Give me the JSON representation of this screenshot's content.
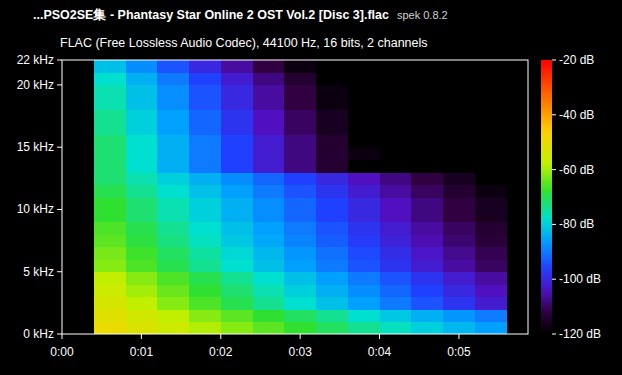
{
  "chart_data": {
    "type": "heatmap",
    "title": "...PSO2SE集 - Phantasy Star Online 2 OST Vol.2 [Disc 3].flac",
    "annotations": [
      "spek 0.8.2"
    ],
    "subtitle": "FLAC (Free Lossless Audio Codec), 44100 Hz, 16 bits, 2 channels",
    "x_bins": [
      0.4,
      0.8,
      1.2,
      1.6,
      2.0,
      2.4,
      2.8,
      3.2,
      3.6,
      4.0,
      4.4,
      4.8,
      5.2,
      5.6
    ],
    "y_bins": [
      0,
      1,
      2,
      3,
      4,
      5,
      6,
      7,
      8,
      9,
      10,
      11,
      12,
      13,
      14,
      15,
      16,
      17,
      18,
      19,
      20,
      21,
      22
    ],
    "cells": [
      [
        -50,
        -53,
        -56,
        -59,
        -62,
        -65,
        -68,
        -71,
        -74,
        -77,
        -80,
        -83,
        -86
      ],
      [
        -52,
        -55,
        -58,
        -62,
        -65,
        -68,
        -71,
        -74,
        -78,
        -81,
        -84,
        -87,
        -90
      ],
      [
        -54,
        -58,
        -62,
        -66,
        -70,
        -74,
        -78,
        -82,
        -86,
        -90,
        -94,
        -98,
        -102
      ],
      [
        -56,
        -60,
        -64,
        -68,
        -72,
        -76,
        -80,
        -84,
        -88,
        -92,
        -96,
        -100,
        -104
      ],
      [
        -58,
        -62,
        -66,
        -70,
        -74,
        -78,
        -82,
        -86,
        -90,
        -94,
        -98,
        -102,
        -106
      ],
      [
        -62,
        -66,
        -70,
        -74,
        -78,
        -82,
        -86,
        -90,
        -94,
        -98,
        -102,
        -106,
        -110
      ],
      [
        -63,
        -67,
        -71,
        -75,
        -79,
        -83,
        -87,
        -91,
        -95,
        -99,
        -103,
        -107,
        -111
      ],
      [
        -65,
        -69,
        -73,
        -77,
        -81,
        -85,
        -89,
        -93,
        -97,
        -101,
        -105,
        -109,
        -113
      ],
      [
        -66,
        -70,
        -74,
        -78,
        -82,
        -86,
        -90,
        -94,
        -98,
        -102,
        -106,
        -110,
        -114
      ],
      [
        -68,
        -72,
        -76,
        -80,
        -84,
        -88,
        -92,
        -96,
        -100,
        -104,
        -108,
        -112,
        -116
      ],
      [
        -68,
        -72,
        -76,
        -80,
        -84,
        -88,
        -92,
        -96,
        -100,
        -104,
        -108,
        -112,
        -116
      ],
      [
        -70,
        -74,
        -78,
        -82,
        -86,
        -90,
        -94,
        -98,
        -102,
        -106,
        -110,
        -114,
        -118
      ],
      [
        -72,
        -76,
        -80,
        -84,
        -88,
        -92,
        -96,
        -100,
        -104,
        -108,
        -112,
        -116,
        -120
      ],
      [
        -72,
        -78,
        -84,
        -90,
        -96,
        -102,
        -108,
        -114,
        -120,
        -120,
        -120,
        -120,
        -120
      ],
      [
        -72,
        -78,
        -84,
        -90,
        -96,
        -102,
        -108,
        -114,
        -118,
        -120,
        -120,
        -120,
        -120
      ],
      [
        -72,
        -78,
        -84,
        -90,
        -96,
        -102,
        -108,
        -114,
        -120,
        -120,
        -120,
        -120,
        -120
      ],
      [
        -74,
        -80,
        -86,
        -92,
        -98,
        -104,
        -110,
        -116,
        -120,
        -120,
        -120,
        -120,
        -120
      ],
      [
        -74,
        -80,
        -86,
        -92,
        -98,
        -104,
        -110,
        -116,
        -120,
        -120,
        -120,
        -120,
        -120
      ],
      [
        -76,
        -82,
        -88,
        -94,
        -100,
        -106,
        -112,
        -118,
        -120,
        -120,
        -120,
        -120,
        -120
      ],
      [
        -76,
        -82,
        -88,
        -94,
        -100,
        -106,
        -112,
        -118,
        -120,
        -120,
        -120,
        -120,
        -120
      ],
      [
        -78,
        -84,
        -90,
        -96,
        -102,
        -108,
        -114,
        -120,
        -120,
        -120,
        -120,
        -120,
        -120
      ],
      [
        -82,
        -88,
        -94,
        -100,
        -106,
        -112,
        -118,
        -120,
        -120,
        -120,
        -120,
        -120,
        -120
      ]
    ],
    "xlim": [
      0,
      5.87
    ],
    "xticks": [
      {
        "value": 0,
        "label": "0:00"
      },
      {
        "value": 1,
        "label": "0:01"
      },
      {
        "value": 2,
        "label": "0:02"
      },
      {
        "value": 3,
        "label": "0:03"
      },
      {
        "value": 4,
        "label": "0:04"
      },
      {
        "value": 5,
        "label": "0:05"
      }
    ],
    "ylim": [
      0,
      22
    ],
    "yticks": [
      {
        "value": 0,
        "label": "0 kHz"
      },
      {
        "value": 5,
        "label": "5 kHz"
      },
      {
        "value": 10,
        "label": "10 kHz"
      },
      {
        "value": 15,
        "label": "15 kHz"
      },
      {
        "value": 20,
        "label": "20 kHz"
      },
      {
        "value": 22,
        "label": "22 kHz"
      }
    ],
    "clim": [
      -120,
      -20
    ],
    "cticks": [
      {
        "value": -20,
        "label": "-20 dB"
      },
      {
        "value": -40,
        "label": "-40 dB"
      },
      {
        "value": -60,
        "label": "-60 dB"
      },
      {
        "value": -80,
        "label": "-80 dB"
      },
      {
        "value": -100,
        "label": "-100 dB"
      },
      {
        "value": -120,
        "label": "-120 dB"
      }
    ]
  }
}
